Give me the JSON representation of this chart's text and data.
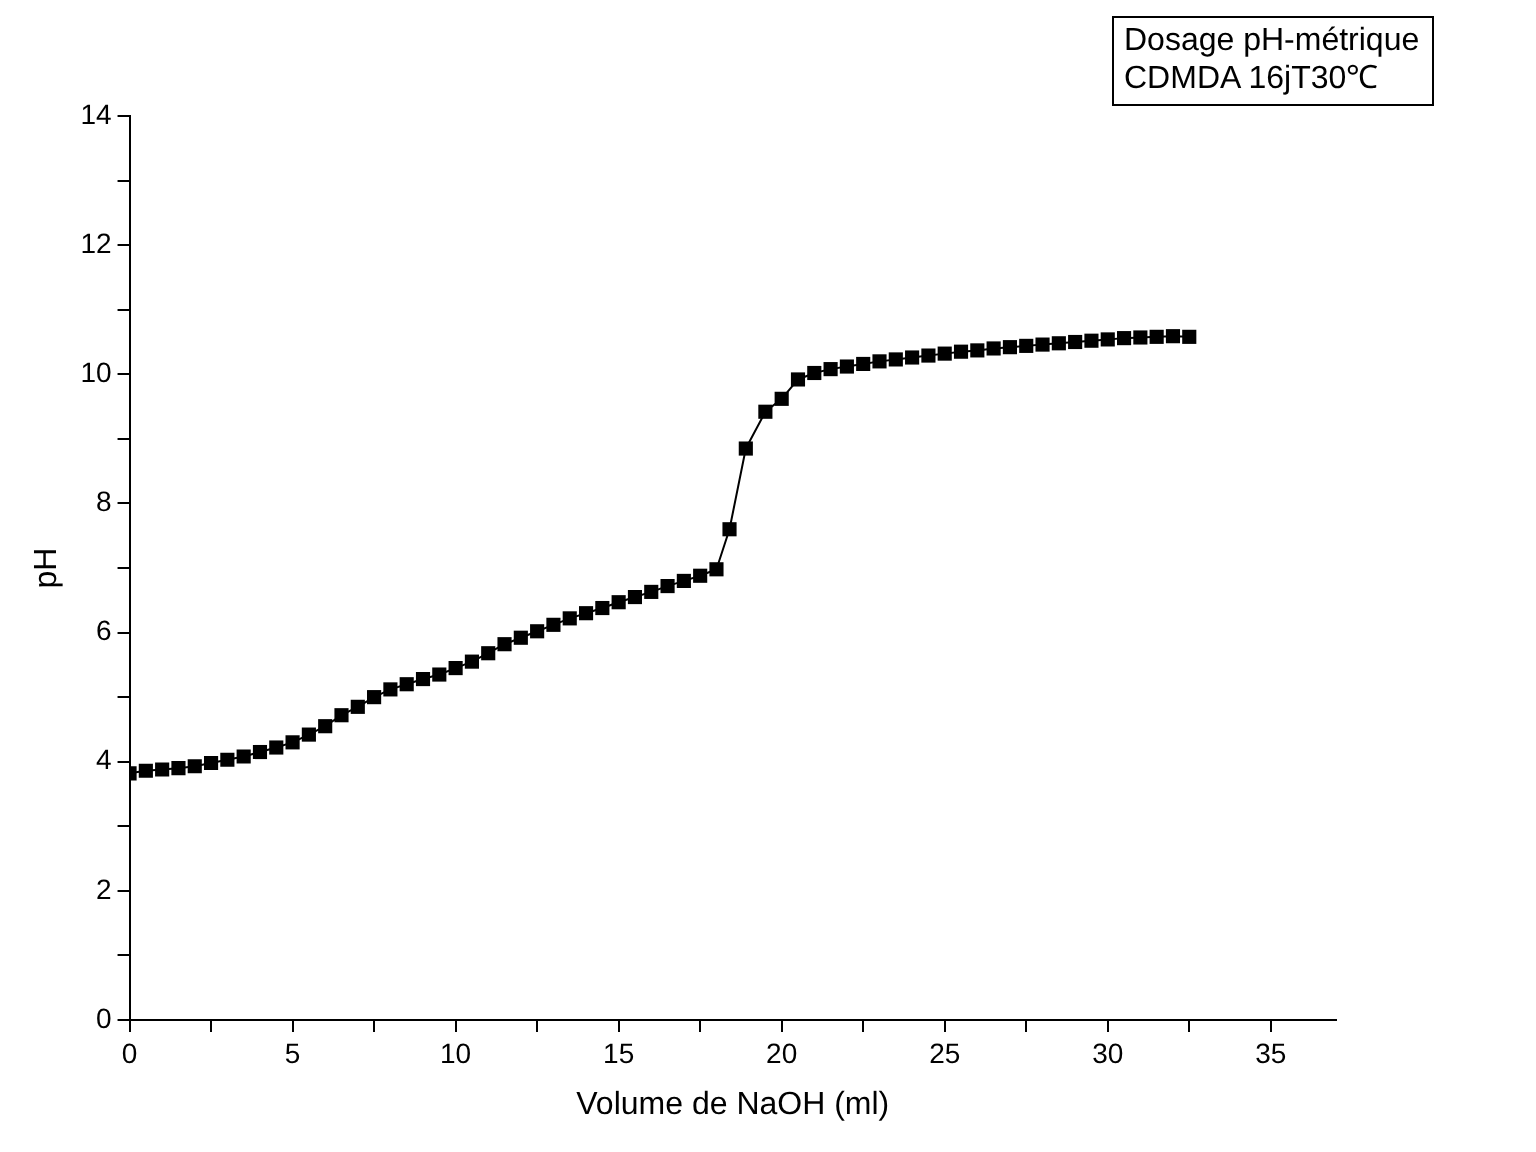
{
  "chart_data": {
    "type": "line",
    "xlabel": "Volume de NaOH (ml)",
    "ylabel": "pH",
    "annotations": [
      "Dosage pH-métrique\nCDMDA 16jT30℃"
    ],
    "marker": "square",
    "line_style": "solid",
    "grid": false,
    "legend": false,
    "xlim": [
      0,
      37
    ],
    "ylim": [
      0,
      14
    ],
    "xticks": [
      0,
      {
        "value": 2.5,
        "label": null
      },
      5,
      {
        "value": 7.5,
        "label": null
      },
      10,
      {
        "value": 12.5,
        "label": null
      },
      15,
      {
        "value": 17.5,
        "label": null
      },
      20,
      {
        "value": 22.5,
        "label": null
      },
      25,
      {
        "value": 27.5,
        "label": null
      },
      30,
      {
        "value": 32.5,
        "label": null
      },
      35
    ],
    "yticks": [
      0,
      {
        "value": 1,
        "label": null
      },
      2,
      {
        "value": 3,
        "label": null
      },
      4,
      {
        "value": 5,
        "label": null
      },
      6,
      {
        "value": 7,
        "label": null
      },
      8,
      {
        "value": 9,
        "label": null
      },
      10,
      {
        "value": 11,
        "label": null
      },
      12,
      {
        "value": 13,
        "label": null
      },
      14
    ],
    "series": [
      {
        "color": "#000000",
        "x": [
          0,
          0.5,
          1,
          1.5,
          2,
          2.5,
          3,
          3.5,
          4,
          4.5,
          5,
          5.5,
          6,
          6.5,
          7,
          7.5,
          8,
          8.5,
          9,
          9.5,
          10,
          10.5,
          11,
          11.5,
          12,
          12.5,
          13,
          13.5,
          14,
          14.5,
          15,
          15.5,
          16,
          16.5,
          17,
          17.5,
          18,
          18.4,
          18.9,
          19.5,
          20,
          20.5,
          21,
          21.5,
          22,
          22.5,
          23,
          23.5,
          24,
          24.5,
          25,
          25.5,
          26,
          26.5,
          27,
          27.5,
          28,
          28.5,
          29,
          29.5,
          30,
          30.5,
          31,
          31.5,
          32,
          32.5
        ],
        "values": [
          3.82,
          3.86,
          3.88,
          3.9,
          3.93,
          3.98,
          4.03,
          4.08,
          4.15,
          4.22,
          4.3,
          4.42,
          4.55,
          4.72,
          4.85,
          5.0,
          5.12,
          5.2,
          5.28,
          5.35,
          5.45,
          5.55,
          5.68,
          5.82,
          5.92,
          6.02,
          6.12,
          6.22,
          6.3,
          6.38,
          6.47,
          6.55,
          6.63,
          6.72,
          6.8,
          6.88,
          6.98,
          7.6,
          8.85,
          9.42,
          9.62,
          9.92,
          10.02,
          10.08,
          10.12,
          10.16,
          10.2,
          10.23,
          10.26,
          10.29,
          10.32,
          10.35,
          10.37,
          10.4,
          10.42,
          10.44,
          10.46,
          10.48,
          10.5,
          10.52,
          10.54,
          10.56,
          10.57,
          10.58,
          10.59,
          10.58
        ]
      }
    ]
  }
}
